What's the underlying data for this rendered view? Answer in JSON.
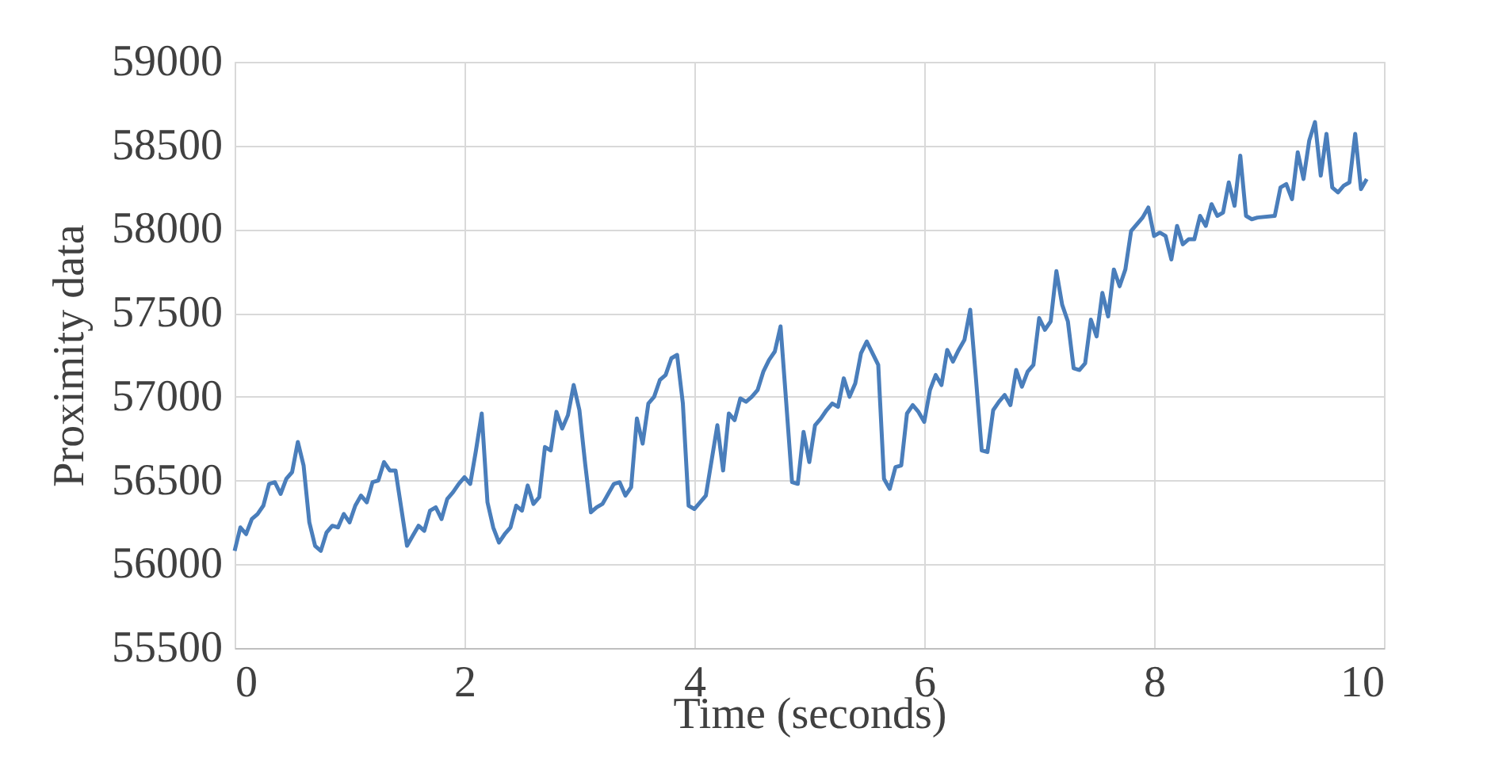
{
  "chart_data": {
    "type": "line",
    "xlabel": "Time (seconds)",
    "ylabel": "Proximity data",
    "xlim": [
      0,
      10
    ],
    "xticks": [
      0,
      2,
      4,
      6,
      8,
      10
    ],
    "ylim": [
      55500,
      59000
    ],
    "yticks": [
      55500,
      56000,
      56500,
      57000,
      57500,
      58000,
      58500,
      59000
    ],
    "grid": true,
    "marker": "none",
    "line_style": "solid",
    "x": [
      0.0,
      0.05,
      0.1,
      0.15,
      0.2,
      0.25,
      0.3,
      0.35,
      0.4,
      0.45,
      0.5,
      0.55,
      0.6,
      0.65,
      0.7,
      0.75,
      0.8,
      0.85,
      0.9,
      0.95,
      1.0,
      1.05,
      1.1,
      1.15,
      1.2,
      1.25,
      1.3,
      1.35,
      1.4,
      1.5,
      1.55,
      1.6,
      1.65,
      1.7,
      1.75,
      1.8,
      1.85,
      1.9,
      1.95,
      2.0,
      2.05,
      2.1,
      2.15,
      2.2,
      2.25,
      2.3,
      2.35,
      2.4,
      2.45,
      2.5,
      2.55,
      2.6,
      2.65,
      2.7,
      2.75,
      2.8,
      2.85,
      2.9,
      2.95,
      3.0,
      3.05,
      3.1,
      3.15,
      3.2,
      3.25,
      3.3,
      3.35,
      3.4,
      3.45,
      3.5,
      3.55,
      3.6,
      3.65,
      3.7,
      3.75,
      3.8,
      3.85,
      3.9,
      3.95,
      4.0,
      4.05,
      4.1,
      4.2,
      4.25,
      4.3,
      4.35,
      4.4,
      4.45,
      4.5,
      4.55,
      4.6,
      4.65,
      4.7,
      4.75,
      4.8,
      4.85,
      4.9,
      4.95,
      5.0,
      5.05,
      5.1,
      5.15,
      5.2,
      5.25,
      5.3,
      5.35,
      5.4,
      5.45,
      5.5,
      5.55,
      5.6,
      5.65,
      5.7,
      5.75,
      5.8,
      5.85,
      5.9,
      5.95,
      6.0,
      6.05,
      6.1,
      6.15,
      6.2,
      6.25,
      6.3,
      6.35,
      6.4,
      6.45,
      6.5,
      6.55,
      6.6,
      6.65,
      6.7,
      6.75,
      6.8,
      6.85,
      6.9,
      6.95,
      7.0,
      7.05,
      7.1,
      7.15,
      7.2,
      7.25,
      7.3,
      7.35,
      7.4,
      7.45,
      7.5,
      7.55,
      7.6,
      7.65,
      7.7,
      7.75,
      7.8,
      7.85,
      7.9,
      7.95,
      8.0,
      8.05,
      8.1,
      8.15,
      8.2,
      8.25,
      8.3,
      8.35,
      8.4,
      8.45,
      8.5,
      8.55,
      8.6,
      8.65,
      8.7,
      8.75,
      8.8,
      8.85,
      8.9,
      9.05,
      9.1,
      9.15,
      9.2,
      9.25,
      9.3,
      9.35,
      9.4,
      9.45,
      9.5,
      9.55,
      9.6,
      9.65,
      9.7,
      9.75,
      9.8,
      9.85
    ],
    "series": [
      {
        "color": "#4a7ebb",
        "values": [
          56080,
          56220,
          56180,
          56270,
          56300,
          56350,
          56480,
          56490,
          56420,
          56510,
          56550,
          56730,
          56590,
          56250,
          56110,
          56080,
          56190,
          56230,
          56220,
          56300,
          56250,
          56350,
          56410,
          56370,
          56490,
          56500,
          56610,
          56560,
          56560,
          56110,
          56170,
          56230,
          56200,
          56320,
          56340,
          56270,
          56390,
          56430,
          56480,
          56520,
          56480,
          56680,
          56900,
          56370,
          56220,
          56130,
          56180,
          56220,
          56350,
          56320,
          56470,
          56360,
          56400,
          56700,
          56680,
          56910,
          56810,
          56890,
          57070,
          56920,
          56600,
          56310,
          56340,
          56360,
          56420,
          56480,
          56490,
          56410,
          56460,
          56870,
          56720,
          56960,
          57000,
          57100,
          57130,
          57230,
          57250,
          56960,
          56350,
          56330,
          56370,
          56410,
          56830,
          56560,
          56900,
          56860,
          56990,
          56970,
          57000,
          57040,
          57150,
          57220,
          57270,
          57420,
          56960,
          56490,
          56480,
          56790,
          56610,
          56830,
          56870,
          56920,
          56960,
          56940,
          57110,
          57000,
          57080,
          57260,
          57330,
          57260,
          57190,
          56510,
          56450,
          56580,
          56590,
          56900,
          56950,
          56910,
          56850,
          57040,
          57130,
          57070,
          57280,
          57210,
          57280,
          57340,
          57520,
          57110,
          56680,
          56670,
          56920,
          56970,
          57010,
          56950,
          57160,
          57060,
          57150,
          57190,
          57470,
          57400,
          57450,
          57750,
          57550,
          57450,
          57170,
          57160,
          57200,
          57460,
          57360,
          57620,
          57480,
          57760,
          57660,
          57760,
          57990,
          58030,
          58070,
          58130,
          57960,
          57980,
          57960,
          57820,
          58020,
          57910,
          57940,
          57940,
          58080,
          58020,
          58150,
          58080,
          58100,
          58280,
          58140,
          58440,
          58080,
          58060,
          58070,
          58080,
          58250,
          58270,
          58180,
          58460,
          58300,
          58530,
          58640,
          58320,
          58570,
          58250,
          58220,
          58260,
          58280,
          58570,
          58240,
          58300
        ]
      }
    ]
  }
}
